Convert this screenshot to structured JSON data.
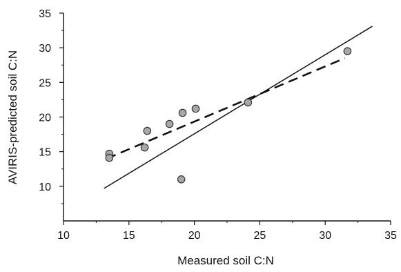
{
  "chart_data": {
    "type": "scatter",
    "xlabel": "Measured soil C:N",
    "ylabel": "AVIRIS-predicted soil C:N",
    "xlim": [
      10,
      35
    ],
    "ylim": [
      5,
      35
    ],
    "x_ticks": [
      "10",
      "15",
      "20",
      "25",
      "30",
      "35"
    ],
    "y_ticks": [
      "10",
      "15",
      "20",
      "25",
      "30",
      "35"
    ],
    "points": [
      {
        "x": 13.5,
        "y": 14.7
      },
      {
        "x": 13.5,
        "y": 14.1
      },
      {
        "x": 16.2,
        "y": 15.6
      },
      {
        "x": 16.4,
        "y": 18.0
      },
      {
        "x": 18.1,
        "y": 19.0
      },
      {
        "x": 19.1,
        "y": 20.6
      },
      {
        "x": 20.1,
        "y": 21.2
      },
      {
        "x": 19.0,
        "y": 11.0
      },
      {
        "x": 24.1,
        "y": 22.1
      },
      {
        "x": 31.7,
        "y": 29.5
      }
    ],
    "lines": [
      {
        "style": "solid",
        "x": [
          13.1,
          33.6
        ],
        "y": [
          9.7,
          33.1
        ]
      },
      {
        "style": "dashed",
        "x": [
          13.3,
          31.5
        ],
        "y": [
          14.0,
          28.5
        ]
      }
    ],
    "grid": false,
    "colors": {
      "axis": "#111111",
      "point_fill": "#a8a8a8",
      "point_stroke": "#333333",
      "line": "#111111"
    }
  }
}
